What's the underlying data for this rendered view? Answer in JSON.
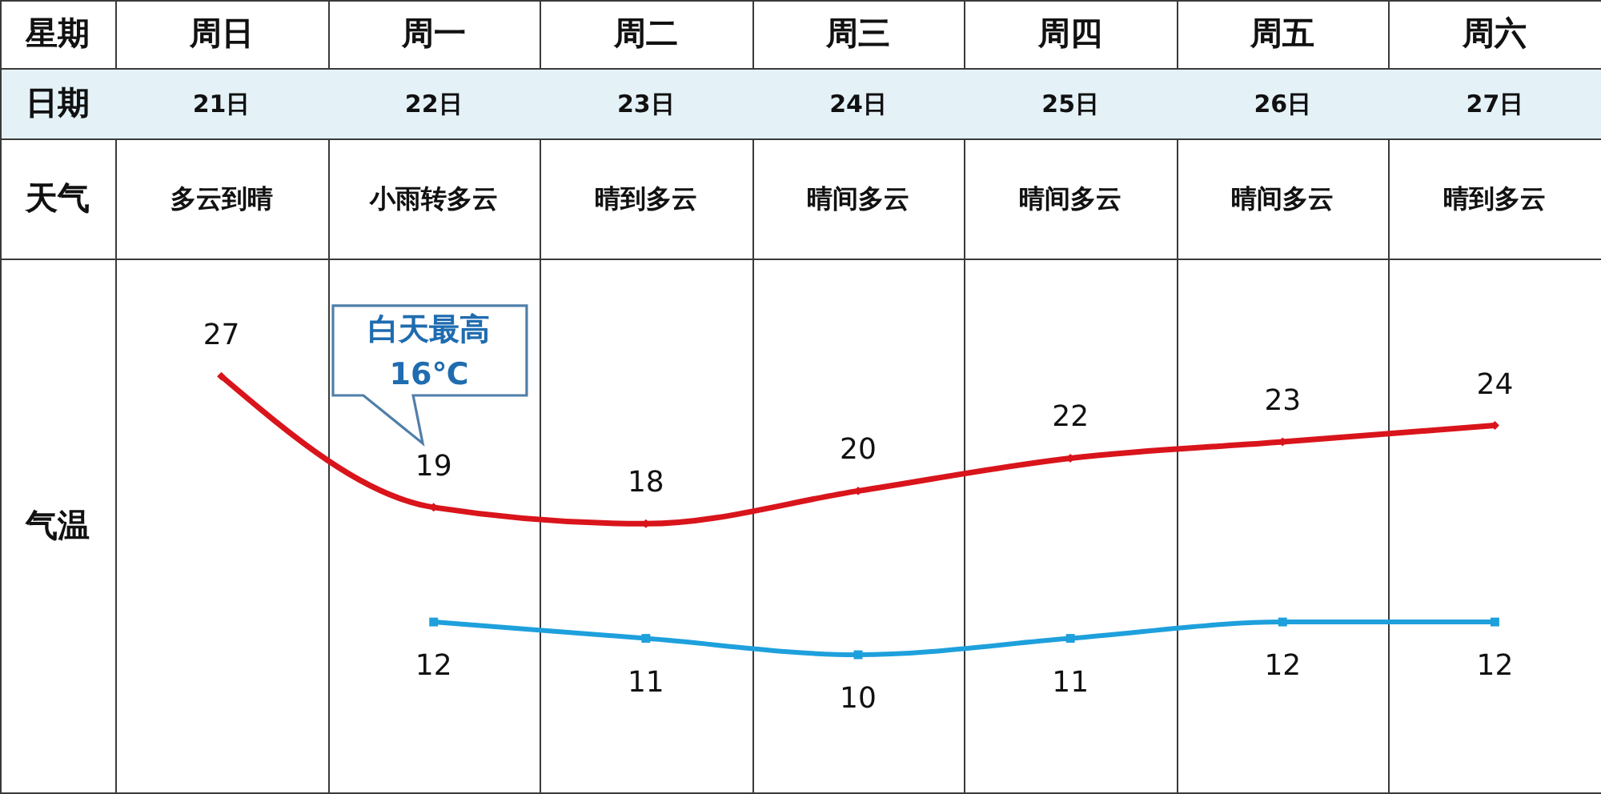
{
  "chart_data": {
    "type": "line",
    "xlabel": "星期",
    "ylabel": "气温",
    "categories": [
      "周日",
      "周一",
      "周二",
      "周三",
      "周四",
      "周五",
      "周六"
    ],
    "series": [
      {
        "color": "#d9141b",
        "marker": "diamond",
        "values": [
          27,
          19,
          18,
          20,
          22,
          23,
          24
        ]
      },
      {
        "color": "#1ea0dc",
        "marker": "square",
        "values": [
          null,
          12,
          11,
          10,
          11,
          12,
          12
        ]
      }
    ],
    "data_labels": true,
    "grid": "x",
    "line_style": "solid",
    "annotations": [
      "日期",
      "21日",
      "22日",
      "23日",
      "24日",
      "25日",
      "26日",
      "27日",
      "天气",
      "多云到晴",
      "小雨转多云",
      "晴到多云",
      "晴间多云",
      "晴间多云",
      "晴间多云",
      "晴到多云",
      "白天最高 16℃"
    ]
  }
}
